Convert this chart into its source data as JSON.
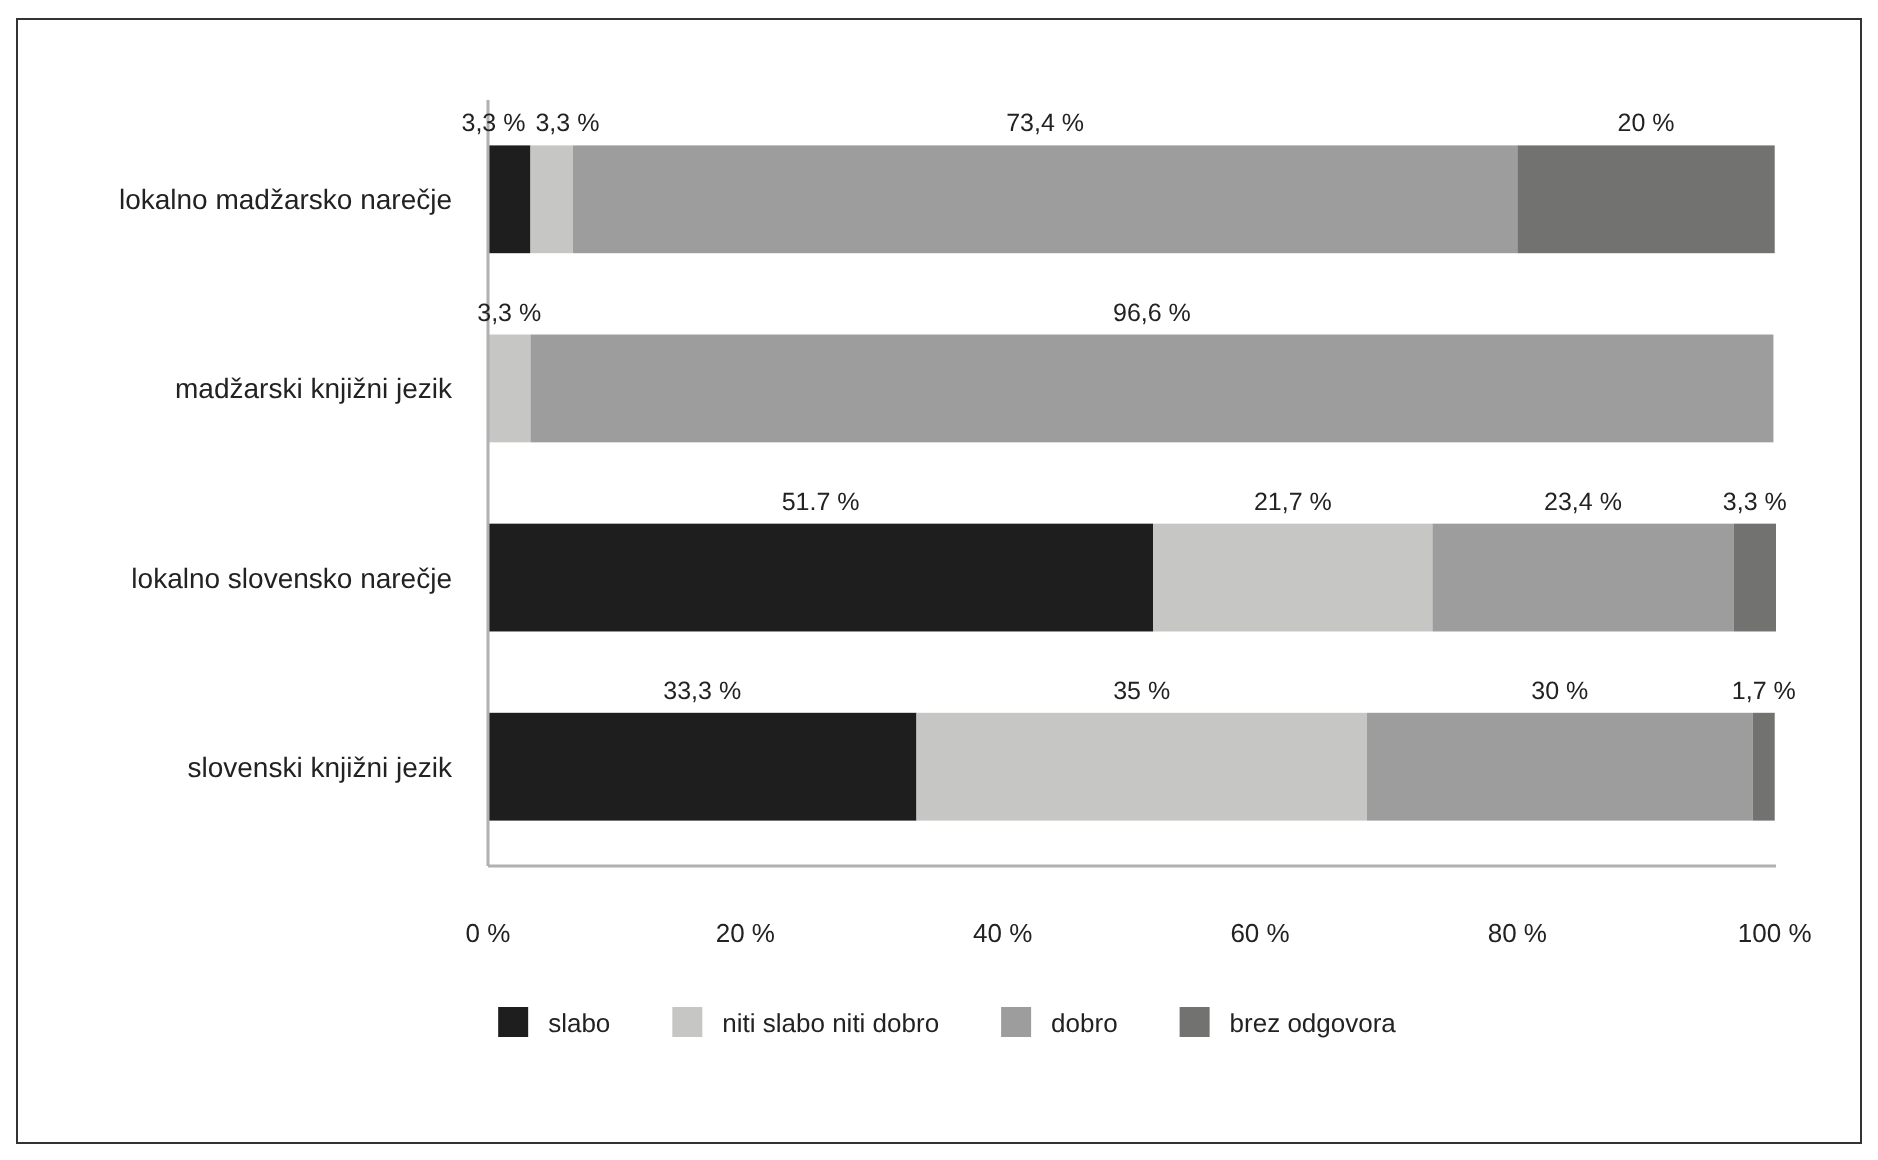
{
  "chart_data": {
    "type": "bar",
    "orientation": "horizontal",
    "stacked": true,
    "categories": [
      "lokalno madžarsko narečje",
      "madžarski knjižni jezik",
      "lokalno slovensko narečje",
      "slovenski knjižni jezik"
    ],
    "series": [
      {
        "name": "slabo",
        "color": "#1e1e1e",
        "values": [
          3.3,
          null,
          51.7,
          33.3
        ],
        "value_labels": [
          "3,3 %",
          null,
          "51.7 %",
          "33,3 %"
        ]
      },
      {
        "name": "niti slabo niti dobro",
        "color": "#c6c6c5",
        "values": [
          3.3,
          3.3,
          21.7,
          35
        ],
        "value_labels": [
          "3,3 %",
          "3,3 %",
          "21,7 %",
          "35 %"
        ]
      },
      {
        "name": "dobro",
        "color": "#9d9d9d",
        "values": [
          73.4,
          96.6,
          23.4,
          30
        ],
        "value_labels": [
          "73,4 %",
          "96,6 %",
          "23,4 %",
          "30 %"
        ]
      },
      {
        "name": "brez odgovora",
        "color": "#727270",
        "values": [
          20,
          null,
          3.3,
          1.7
        ],
        "value_labels": [
          "20 %",
          null,
          "3,3 %",
          "1,7 %"
        ]
      }
    ],
    "xlim": [
      0,
      100.1
    ],
    "xticks": [
      {
        "value": 0,
        "label": "0 %"
      },
      {
        "value": 20,
        "label": "20 %"
      },
      {
        "value": 40,
        "label": "40 %"
      },
      {
        "value": 60,
        "label": "60 %"
      },
      {
        "value": 80,
        "label": "80 %"
      },
      {
        "value": 100,
        "label": "100 %"
      }
    ],
    "legend": "bottom"
  }
}
